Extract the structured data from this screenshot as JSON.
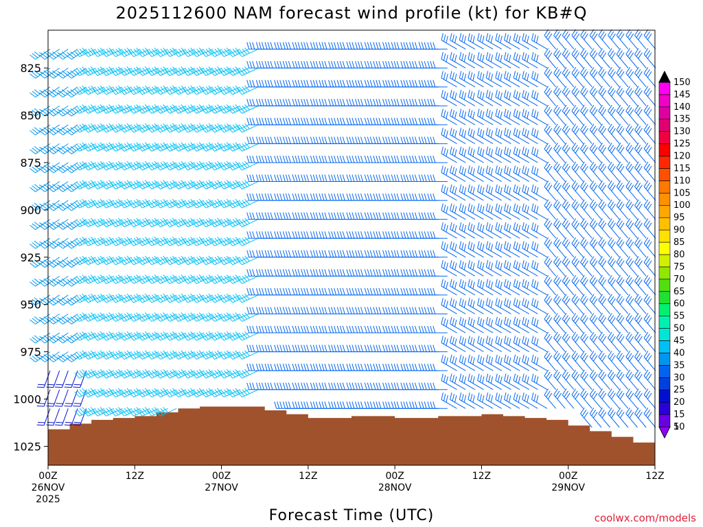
{
  "chart_data": {
    "type": "wind-barb-time-height",
    "title": "2025112600 NAM forecast wind profile (kt) for KB#Q",
    "xlabel": "Forecast Time (UTC)",
    "ylabel": "",
    "y_scale": "pressure-hPa-inverted",
    "ylim": [
      1035,
      805
    ],
    "y_ticks": [
      {
        "value": 825,
        "label": "825"
      },
      {
        "value": 850,
        "label": "850"
      },
      {
        "value": 875,
        "label": "875"
      },
      {
        "value": 900,
        "label": "900"
      },
      {
        "value": 925,
        "label": "925"
      },
      {
        "value": 950,
        "label": "950"
      },
      {
        "value": 975,
        "label": "975"
      },
      {
        "value": 1000,
        "label": "1000"
      },
      {
        "value": 1025,
        "label": "1025"
      }
    ],
    "x_range_hours": [
      0,
      84
    ],
    "x_ticks": [
      {
        "hour": 0,
        "l1": "00Z",
        "l2": "26NOV",
        "l3": "2025"
      },
      {
        "hour": 12,
        "l1": "12Z",
        "l2": "",
        "l3": ""
      },
      {
        "hour": 24,
        "l1": "00Z",
        "l2": "27NOV",
        "l3": ""
      },
      {
        "hour": 36,
        "l1": "12Z",
        "l2": "",
        "l3": ""
      },
      {
        "hour": 48,
        "l1": "00Z",
        "l2": "28NOV",
        "l3": ""
      },
      {
        "hour": 60,
        "l1": "12Z",
        "l2": "",
        "l3": ""
      },
      {
        "hour": 72,
        "l1": "00Z",
        "l2": "29NOV",
        "l3": ""
      },
      {
        "hour": 84,
        "l1": "12Z",
        "l2": "",
        "l3": ""
      }
    ],
    "surface_pressure": {
      "hours": [
        0,
        3,
        6,
        9,
        12,
        15,
        18,
        21,
        24,
        27,
        30,
        33,
        36,
        39,
        42,
        45,
        48,
        51,
        54,
        57,
        60,
        63,
        66,
        69,
        72,
        75,
        78,
        81,
        84
      ],
      "values": [
        1016,
        1013,
        1011,
        1010,
        1009,
        1007,
        1005,
        1004,
        1004,
        1004,
        1006,
        1008,
        1010,
        1010,
        1009,
        1009,
        1010,
        1010,
        1009,
        1009,
        1008,
        1009,
        1010,
        1011,
        1014,
        1017,
        1020,
        1023,
        1026
      ],
      "color": "#a0522d"
    },
    "wind_levels_hPa": [
      815,
      825,
      835,
      845,
      855,
      865,
      875,
      885,
      895,
      905,
      915,
      925,
      935,
      945,
      955,
      965,
      975,
      985,
      995,
      1005,
      1015,
      1025
    ],
    "wind_regimes": [
      {
        "hours": [
          0,
          6
        ],
        "dir_deg": 235,
        "speed_kt": 35,
        "lower_layer_dir_deg": 200,
        "lower_layer_speed_kt": 20
      },
      {
        "hours": [
          6,
          29
        ],
        "dir_deg": 245,
        "speed_kt": 40
      },
      {
        "hours": [
          29,
          56
        ],
        "dir_deg": 270,
        "speed_kt": 30
      },
      {
        "hours": [
          56,
          70
        ],
        "dir_deg": 300,
        "speed_kt": 30
      },
      {
        "hours": [
          70,
          84
        ],
        "dir_deg": 320,
        "speed_kt": 30
      }
    ],
    "wind_columns_hours": [
      0,
      1.3,
      2.5,
      3.8,
      5,
      6.3,
      7.5,
      8.8,
      10,
      11.3,
      12.5,
      13.8,
      15,
      16.3,
      17.5,
      18.8,
      20,
      21.3,
      22.5,
      23.8,
      25,
      26.3,
      27.5,
      28.8,
      30,
      31.3,
      32.5,
      33.8,
      35,
      36.3,
      37.5,
      38.8,
      40,
      41.3,
      42.5,
      43.8,
      45,
      46.3,
      47.5,
      48.8,
      50,
      51.3,
      52.5,
      53.8,
      55,
      56.3,
      57.5,
      58.8,
      60,
      61.3,
      62.5,
      63.8,
      65,
      66.3,
      67.5,
      68.8,
      70,
      71.3,
      72.5,
      73.8,
      75,
      76.3,
      77.5,
      78.8,
      80,
      81.3,
      82.5,
      83.8
    ],
    "colorbar": {
      "units": "kt",
      "levels": [
        5,
        10,
        15,
        20,
        25,
        30,
        35,
        40,
        45,
        50,
        55,
        60,
        65,
        70,
        75,
        80,
        85,
        90,
        95,
        100,
        105,
        110,
        115,
        120,
        125,
        130,
        135,
        140,
        145,
        150
      ],
      "colors": [
        "#9400ff",
        "#6a00e6",
        "#2a00d8",
        "#0010d0",
        "#0040e0",
        "#0064f0",
        "#0096f0",
        "#00bff5",
        "#00e5d8",
        "#00f0b0",
        "#00f070",
        "#20e030",
        "#50e010",
        "#90e800",
        "#d0f000",
        "#ffff00",
        "#ffe000",
        "#ffc000",
        "#ffa800",
        "#ff9000",
        "#ff7800",
        "#ff5000",
        "#ff2800",
        "#ff0000",
        "#f00040",
        "#e00070",
        "#e000a0",
        "#f000c8",
        "#ff00f0",
        "#000000"
      ]
    }
  },
  "credit": "coolwx.com/models"
}
